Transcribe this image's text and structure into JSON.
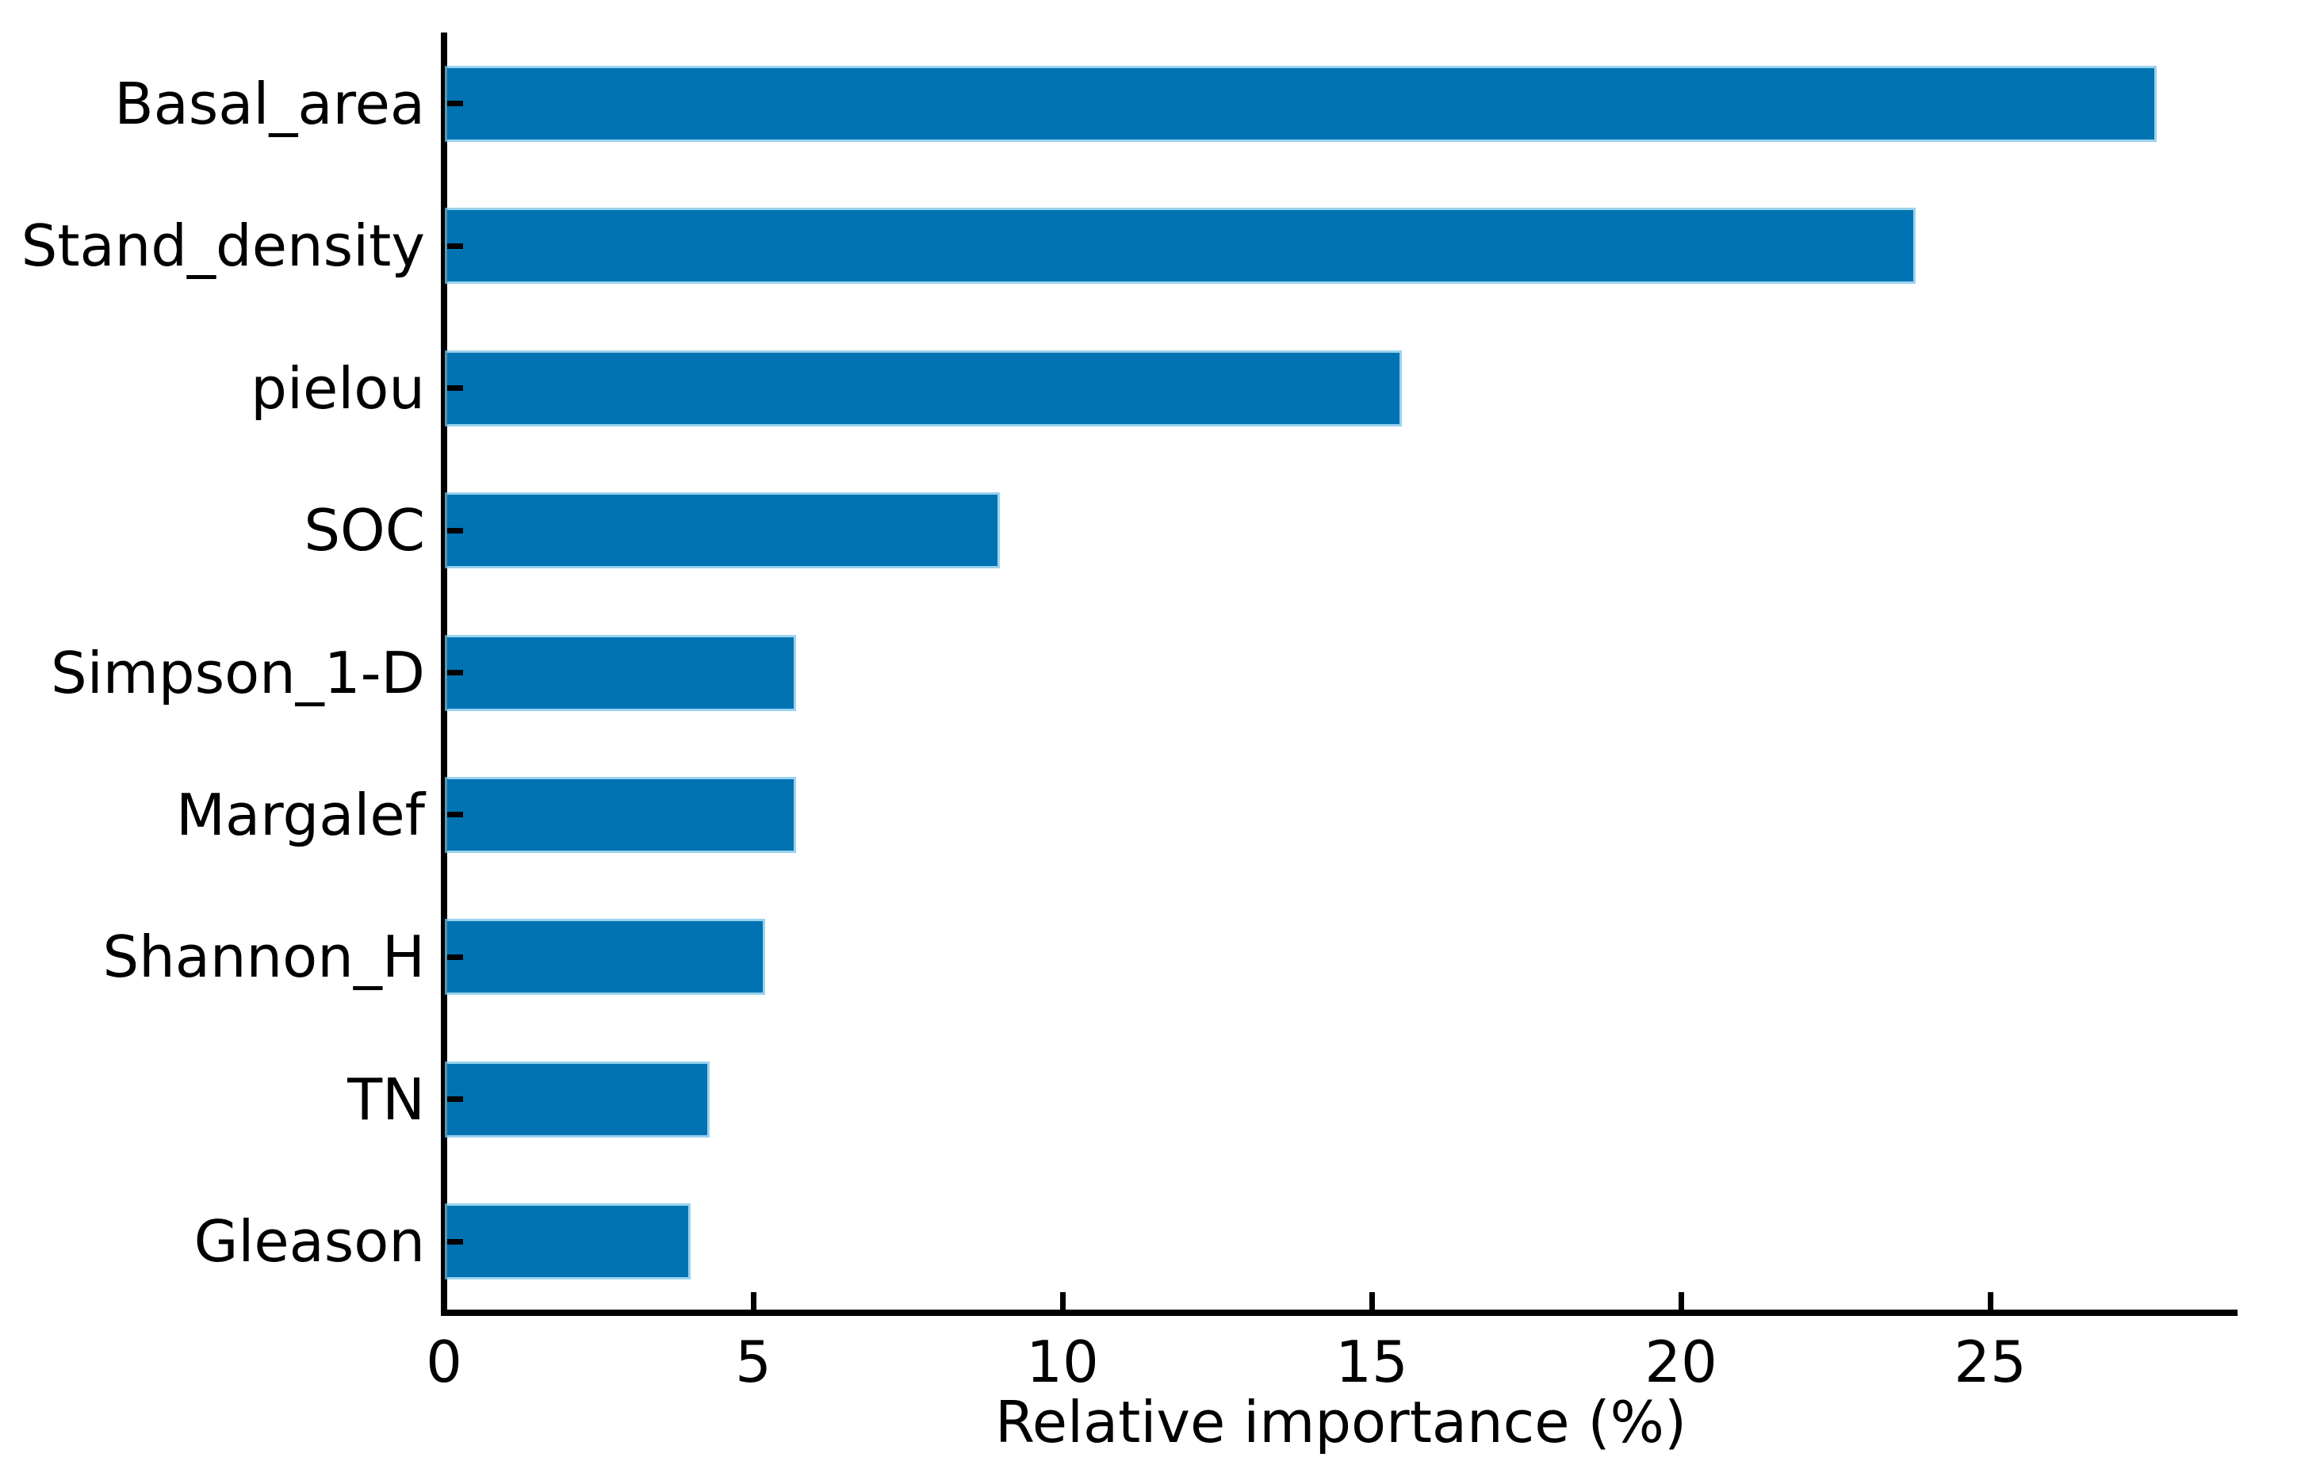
{
  "chart_data": {
    "type": "bar",
    "orientation": "horizontal",
    "categories": [
      "Basal_area",
      "Stand_density",
      "pielou",
      "SOC",
      "Simpson_1-D",
      "Margalef",
      "Shannon_H",
      "TN",
      "Gleason"
    ],
    "values": [
      27.6,
      23.7,
      15.4,
      8.9,
      5.6,
      5.6,
      5.1,
      4.2,
      3.9
    ],
    "xlabel": "Relative importance (%)",
    "ylabel": "",
    "x_ticks": [
      0,
      5,
      10,
      15,
      20,
      25
    ],
    "xlim": [
      0,
      29
    ],
    "grid": false,
    "legend": null,
    "bar_color": "#0173b2",
    "bar_edge_color": "#78c4e8",
    "axis_color": "#000000",
    "text_color": "#000000",
    "bar_height_fraction": 0.5
  }
}
